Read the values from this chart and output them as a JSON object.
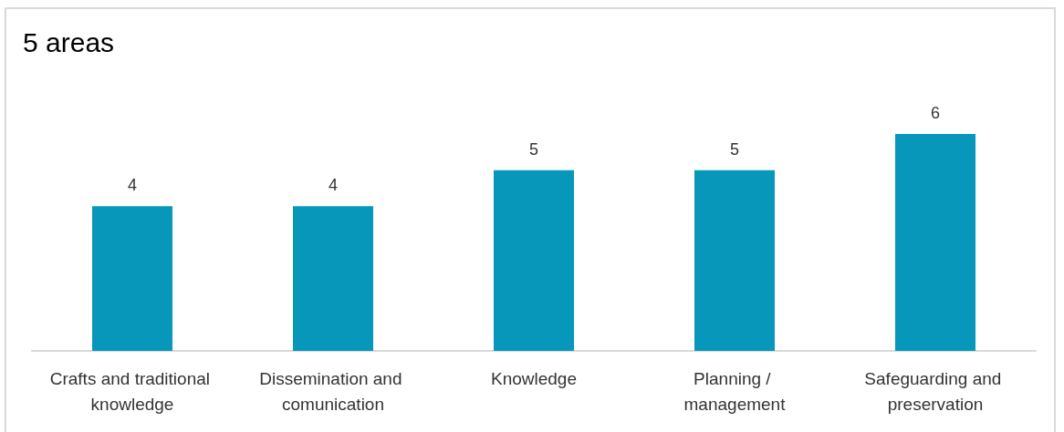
{
  "chart_data": {
    "type": "bar",
    "title": "5 areas",
    "categories": [
      "Crafts and traditional knowledge",
      "Dissemination and comunication",
      "Knowledge",
      "Planning / management",
      "Safeguarding and preservation"
    ],
    "values": [
      4,
      4,
      5,
      5,
      6
    ],
    "color": "#0797bb",
    "data_labels": true
  }
}
